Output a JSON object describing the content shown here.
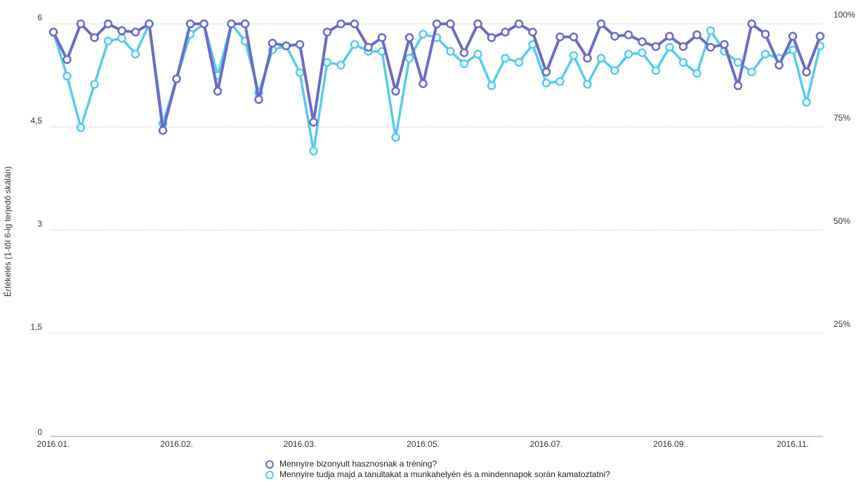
{
  "chart_data": {
    "type": "line",
    "title": "",
    "ylabel": "Értékelés (1-től 6-ig terjedő skálán)",
    "ylim": [
      0,
      6
    ],
    "y_ticks": [
      "0",
      "1,5",
      "3",
      "4,5",
      "6"
    ],
    "y_tick_values": [
      0,
      1.5,
      3,
      4.5,
      6
    ],
    "y2_ticks": [
      "25%",
      "50%",
      "75%",
      "100%"
    ],
    "y2_tick_values": [
      25,
      50,
      75,
      100
    ],
    "y2lim": [
      0,
      100
    ],
    "x_labels": [
      "2016.01.",
      "2016.02.",
      "2016.03.",
      "2016.05.",
      "2016.07.",
      "2016.09.",
      "2016.11."
    ],
    "x_label_positions": [
      0,
      9,
      18,
      27,
      36,
      45,
      54
    ],
    "grid": true,
    "legend_position": "bottom-center",
    "series": [
      {
        "name": "Mennyire bizonyult hasznosnak a tréning?",
        "color": "#6b6bc9",
        "values": [
          5.88,
          5.48,
          6.0,
          5.8,
          6.0,
          5.9,
          5.88,
          6.0,
          4.45,
          5.2,
          6.0,
          6.0,
          5.02,
          6.0,
          6.0,
          4.9,
          5.72,
          5.68,
          5.7,
          4.57,
          5.88,
          6.0,
          6.0,
          5.66,
          5.8,
          5.02,
          5.8,
          5.13,
          6.0,
          6.0,
          5.58,
          6.0,
          5.8,
          5.88,
          6.0,
          5.88,
          5.3,
          5.81,
          5.81,
          5.5,
          6.0,
          5.82,
          5.84,
          5.74,
          5.67,
          5.82,
          5.67,
          5.84,
          5.66,
          5.7,
          5.1,
          6.0,
          5.85,
          5.4,
          5.82,
          5.3,
          5.82
        ]
      },
      {
        "name": "Mennyire tudja majd a tanultakat a munkahelyén és a mindennapok során kamatoztatni?",
        "color": "#55ccf0",
        "values": [
          5.88,
          5.24,
          4.49,
          5.12,
          5.75,
          5.79,
          5.56,
          6.0,
          4.55,
          5.2,
          5.85,
          6.0,
          5.25,
          6.0,
          5.75,
          5.0,
          5.62,
          5.68,
          5.29,
          4.15,
          5.44,
          5.4,
          5.7,
          5.6,
          5.6,
          4.35,
          5.5,
          5.85,
          5.8,
          5.6,
          5.42,
          5.56,
          5.1,
          5.5,
          5.44,
          5.7,
          5.14,
          5.16,
          5.54,
          5.12,
          5.5,
          5.32,
          5.56,
          5.58,
          5.32,
          5.66,
          5.44,
          5.28,
          5.9,
          5.6,
          5.44,
          5.3,
          5.56,
          5.5,
          5.62,
          4.86,
          5.68
        ]
      }
    ]
  }
}
